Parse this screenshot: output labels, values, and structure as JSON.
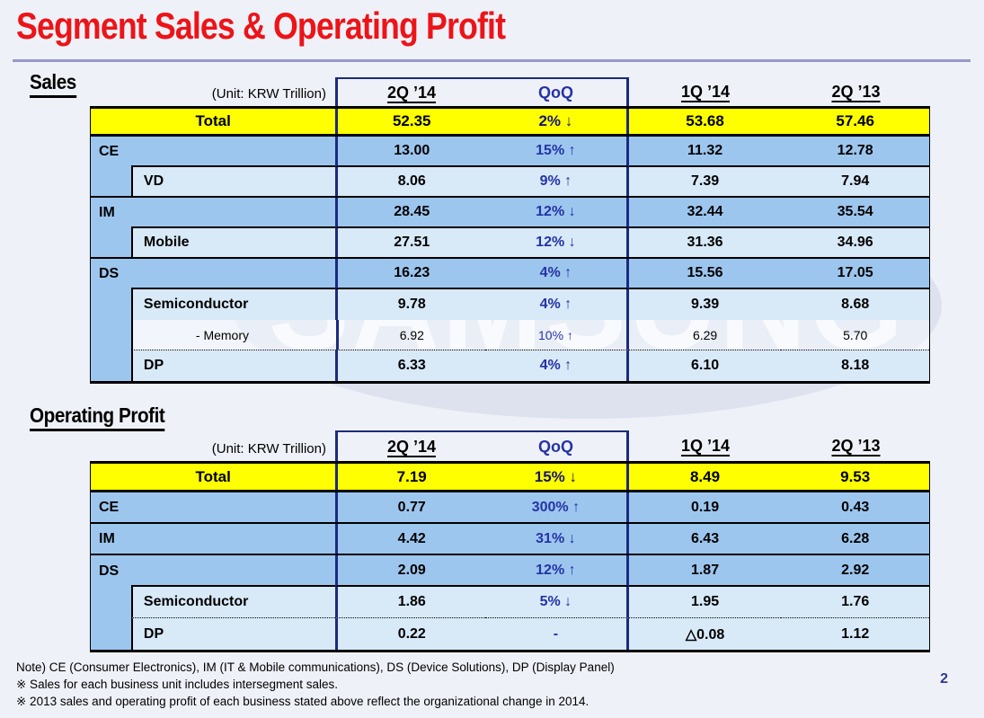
{
  "slide": {
    "title": "Segment Sales & Operating Profit",
    "page_number": "2",
    "watermark_text": "SAMSUNG",
    "notes": [
      "Note) CE (Consumer Electronics), IM (IT & Mobile communications),  DS (Device Solutions), DP (Display Panel)",
      "※ Sales for each business unit includes intersegment sales.",
      "※ 2013 sales and operating profit of each business stated above reflect the organizational change in 2014."
    ],
    "colors": {
      "accent_red": "#EC1418",
      "row_blue": "#9DC6EE",
      "row_light_blue": "#D8E9F8",
      "total_yellow": "#FFFF00",
      "navy_border": "#1B2B7E",
      "qoq_text_blue": "#2433A6"
    }
  },
  "sales": {
    "section_title": "Sales",
    "unit_label": "(Unit: KRW Trillion)",
    "columns": [
      "2Q ’14",
      "QoQ",
      "1Q ’14",
      "2Q ’13"
    ],
    "rows": [
      {
        "label": "Total",
        "values": [
          "52.35",
          "2% ↓",
          "53.68",
          "57.46"
        ]
      },
      {
        "label": "CE",
        "values": [
          "13.00",
          "15% ↑",
          "11.32",
          "12.78"
        ]
      },
      {
        "label": "VD",
        "values": [
          "8.06",
          "9% ↑",
          "7.39",
          "7.94"
        ]
      },
      {
        "label": "IM",
        "values": [
          "28.45",
          "12% ↓",
          "32.44",
          "35.54"
        ]
      },
      {
        "label": "Mobile",
        "values": [
          "27.51",
          "12% ↓",
          "31.36",
          "34.96"
        ]
      },
      {
        "label": "DS",
        "values": [
          "16.23",
          "4% ↑",
          "15.56",
          "17.05"
        ]
      },
      {
        "label": "Semiconductor",
        "values": [
          "9.78",
          "4% ↑",
          "9.39",
          "8.68"
        ]
      },
      {
        "label": "- Memory",
        "values": [
          "6.92",
          "10% ↑",
          "6.29",
          "5.70"
        ]
      },
      {
        "label": "DP",
        "values": [
          "6.33",
          "4% ↑",
          "6.10",
          "8.18"
        ]
      }
    ]
  },
  "operating_profit": {
    "section_title": "Operating Profit",
    "unit_label": "(Unit: KRW Trillion)",
    "columns": [
      "2Q ’14",
      "QoQ",
      "1Q ’14",
      "2Q ’13"
    ],
    "rows": [
      {
        "label": "Total",
        "values": [
          "7.19",
          "15% ↓",
          "8.49",
          "9.53"
        ]
      },
      {
        "label": "CE",
        "values": [
          "0.77",
          "300% ↑",
          "0.19",
          "0.43"
        ]
      },
      {
        "label": "IM",
        "values": [
          "4.42",
          "31% ↓",
          "6.43",
          "6.28"
        ]
      },
      {
        "label": "DS",
        "values": [
          "2.09",
          "12% ↑",
          "1.87",
          "2.92"
        ]
      },
      {
        "label": "Semiconductor",
        "values": [
          "1.86",
          "5% ↓",
          "1.95",
          "1.76"
        ]
      },
      {
        "label": "DP",
        "values": [
          "0.22",
          "-",
          "△0.08",
          "1.12"
        ]
      }
    ]
  }
}
